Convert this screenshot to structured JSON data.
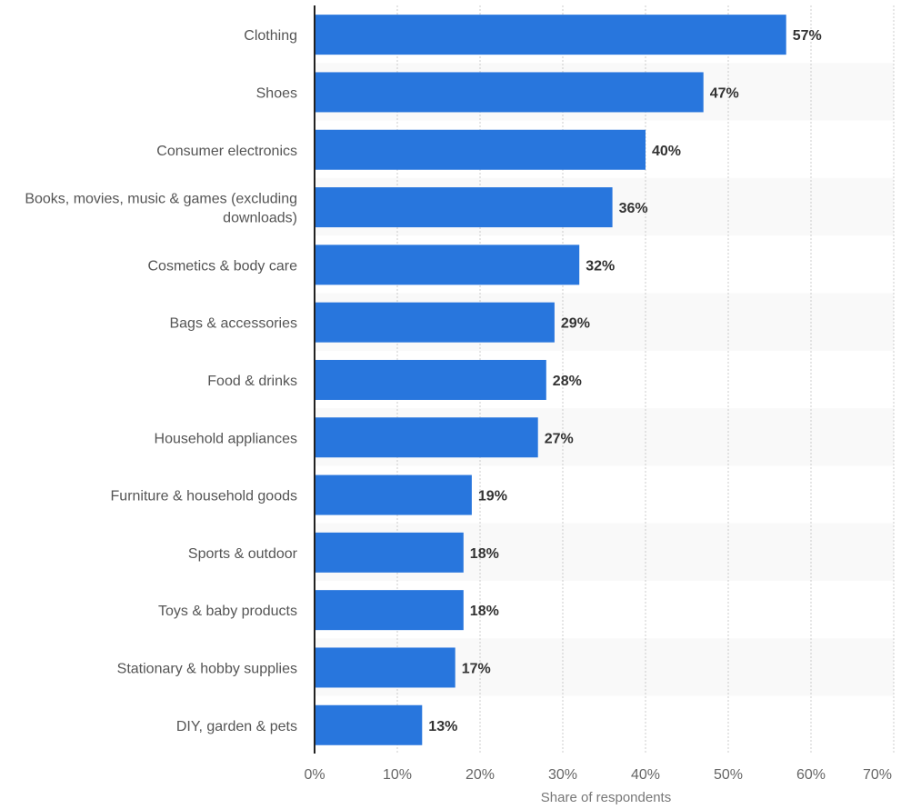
{
  "colors": {
    "bar": "#2876dd",
    "band": "#f9f9f9",
    "grid": "#cccccc",
    "axis": "#222222"
  },
  "chart_data": {
    "type": "bar",
    "orientation": "horizontal",
    "categories": [
      "Clothing",
      "Shoes",
      "Consumer electronics",
      "Books, movies, music & games (excluding downloads)",
      "Cosmetics & body care",
      "Bags & accessories",
      "Food & drinks",
      "Household appliances",
      "Furniture & household goods",
      "Sports & outdoor",
      "Toys & baby products",
      "Stationary & hobby supplies",
      "DIY, garden & pets"
    ],
    "category_lines": [
      [
        "Clothing"
      ],
      [
        "Shoes"
      ],
      [
        "Consumer electronics"
      ],
      [
        "Books, movies, music & games (excluding",
        "downloads)"
      ],
      [
        "Cosmetics & body care"
      ],
      [
        "Bags & accessories"
      ],
      [
        "Food & drinks"
      ],
      [
        "Household appliances"
      ],
      [
        "Furniture & household goods"
      ],
      [
        "Sports & outdoor"
      ],
      [
        "Toys & baby products"
      ],
      [
        "Stationary & hobby supplies"
      ],
      [
        "DIY, garden & pets"
      ]
    ],
    "values": [
      57,
      47,
      40,
      36,
      32,
      29,
      28,
      27,
      19,
      18,
      18,
      17,
      13
    ],
    "value_labels": [
      "57%",
      "47%",
      "40%",
      "36%",
      "32%",
      "29%",
      "28%",
      "27%",
      "19%",
      "18%",
      "18%",
      "17%",
      "13%"
    ],
    "xlim": [
      0,
      70
    ],
    "xticks": [
      0,
      10,
      20,
      30,
      40,
      50,
      60,
      70
    ],
    "xtick_labels": [
      "0%",
      "10%",
      "20%",
      "30%",
      "40%",
      "50%",
      "60%",
      "70%"
    ],
    "xlabel": "Share of respondents",
    "ylabel": "",
    "title": "",
    "grid": "vertical dotted",
    "legend": "none"
  }
}
